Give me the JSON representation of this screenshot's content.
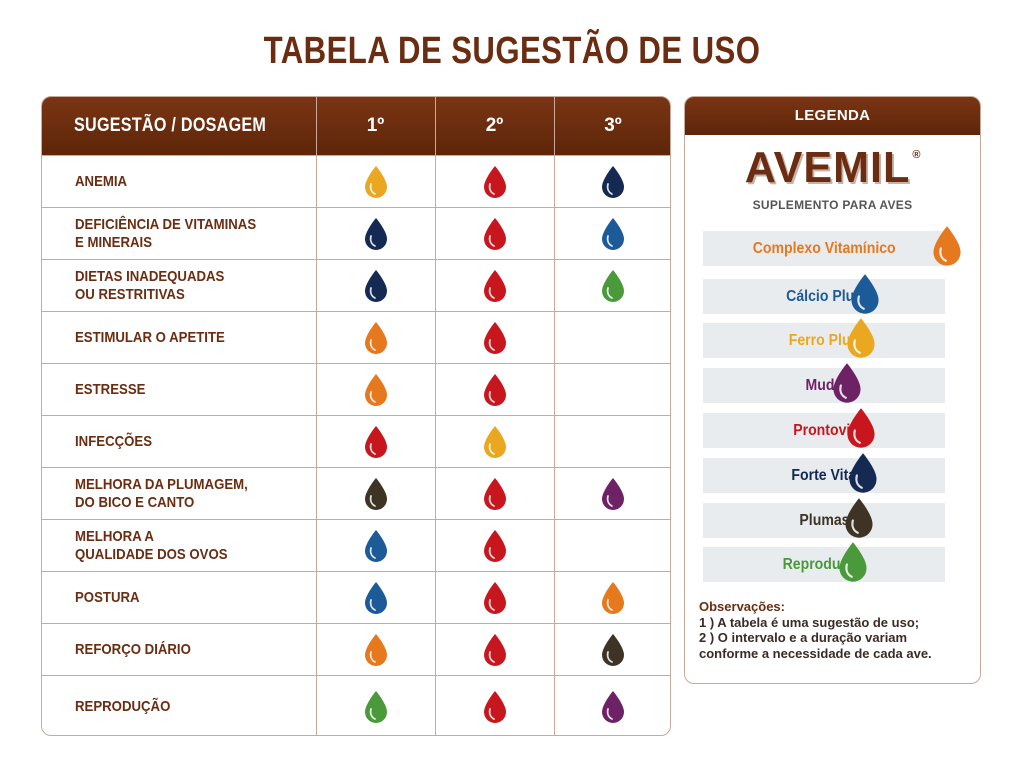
{
  "title": "TABELA DE SUGESTÃO DE USO",
  "table": {
    "header": {
      "main": "SUGESTÃO / DOSAGEM",
      "cols": [
        "1º",
        "2º",
        "3º"
      ]
    },
    "rows": [
      {
        "label": "ANEMIA",
        "drops": [
          "ferro-plus",
          "prontovit",
          "forte-vita"
        ]
      },
      {
        "label": "DEFICIÊNCIA DE VITAMINAS\nE MINERAIS",
        "drops": [
          "forte-vita",
          "prontovit",
          "calcio-plus"
        ]
      },
      {
        "label": "DIETAS INADEQUADAS\nOU RESTRITIVAS",
        "drops": [
          "forte-vita",
          "prontovit",
          "reproducao"
        ]
      },
      {
        "label": "ESTIMULAR O APETITE",
        "drops": [
          "complexo-vitaminico",
          "prontovit",
          null
        ]
      },
      {
        "label": "ESTRESSE",
        "drops": [
          "complexo-vitaminico",
          "prontovit",
          null
        ]
      },
      {
        "label": "INFECÇÕES",
        "drops": [
          "prontovit",
          "ferro-plus",
          null
        ]
      },
      {
        "label": "MELHORA DA PLUMAGEM,\nDO BICO E CANTO",
        "drops": [
          "plumas",
          "prontovit",
          "muda"
        ]
      },
      {
        "label": "MELHORA A\nQUALIDADE DOS OVOS",
        "drops": [
          "calcio-plus",
          "prontovit",
          null
        ]
      },
      {
        "label": "POSTURA",
        "drops": [
          "calcio-plus",
          "prontovit",
          "complexo-vitaminico"
        ]
      },
      {
        "label": "REFORÇO DIÁRIO",
        "drops": [
          "complexo-vitaminico",
          "prontovit",
          "plumas"
        ]
      },
      {
        "label": "REPRODUÇÃO",
        "drops": [
          "reproducao",
          "prontovit",
          "muda"
        ]
      }
    ]
  },
  "legend": {
    "heading": "LEGENDA",
    "brand": "AVEMIL",
    "brand_mark": "®",
    "tagline": "SUPLEMENTO PARA AVES",
    "items": [
      {
        "id": "complexo-vitaminico",
        "label": "Complexo Vitamínico",
        "color": "#e6781e"
      },
      {
        "id": "calcio-plus",
        "label": "Cálcio Plus",
        "color": "#1c5a98"
      },
      {
        "id": "ferro-plus",
        "label": "Ferro Plus",
        "color": "#eaa820"
      },
      {
        "id": "muda",
        "label": "Muda",
        "color": "#6e2266"
      },
      {
        "id": "prontovit",
        "label": "Prontovit",
        "color": "#c8161e"
      },
      {
        "id": "forte-vita",
        "label": "Forte Vita",
        "color": "#142a52"
      },
      {
        "id": "plumas",
        "label": "Plumas",
        "color": "#3e3325"
      },
      {
        "id": "reproducao",
        "label": "Reprodução",
        "color": "#4a9a3c"
      }
    ],
    "observations": {
      "title": "Observações:",
      "lines": [
        "1 ) A tabela é uma sugestão de uso;",
        "2 ) O intervalo e a duração variam",
        "conforme a necessidade de cada ave."
      ]
    }
  }
}
